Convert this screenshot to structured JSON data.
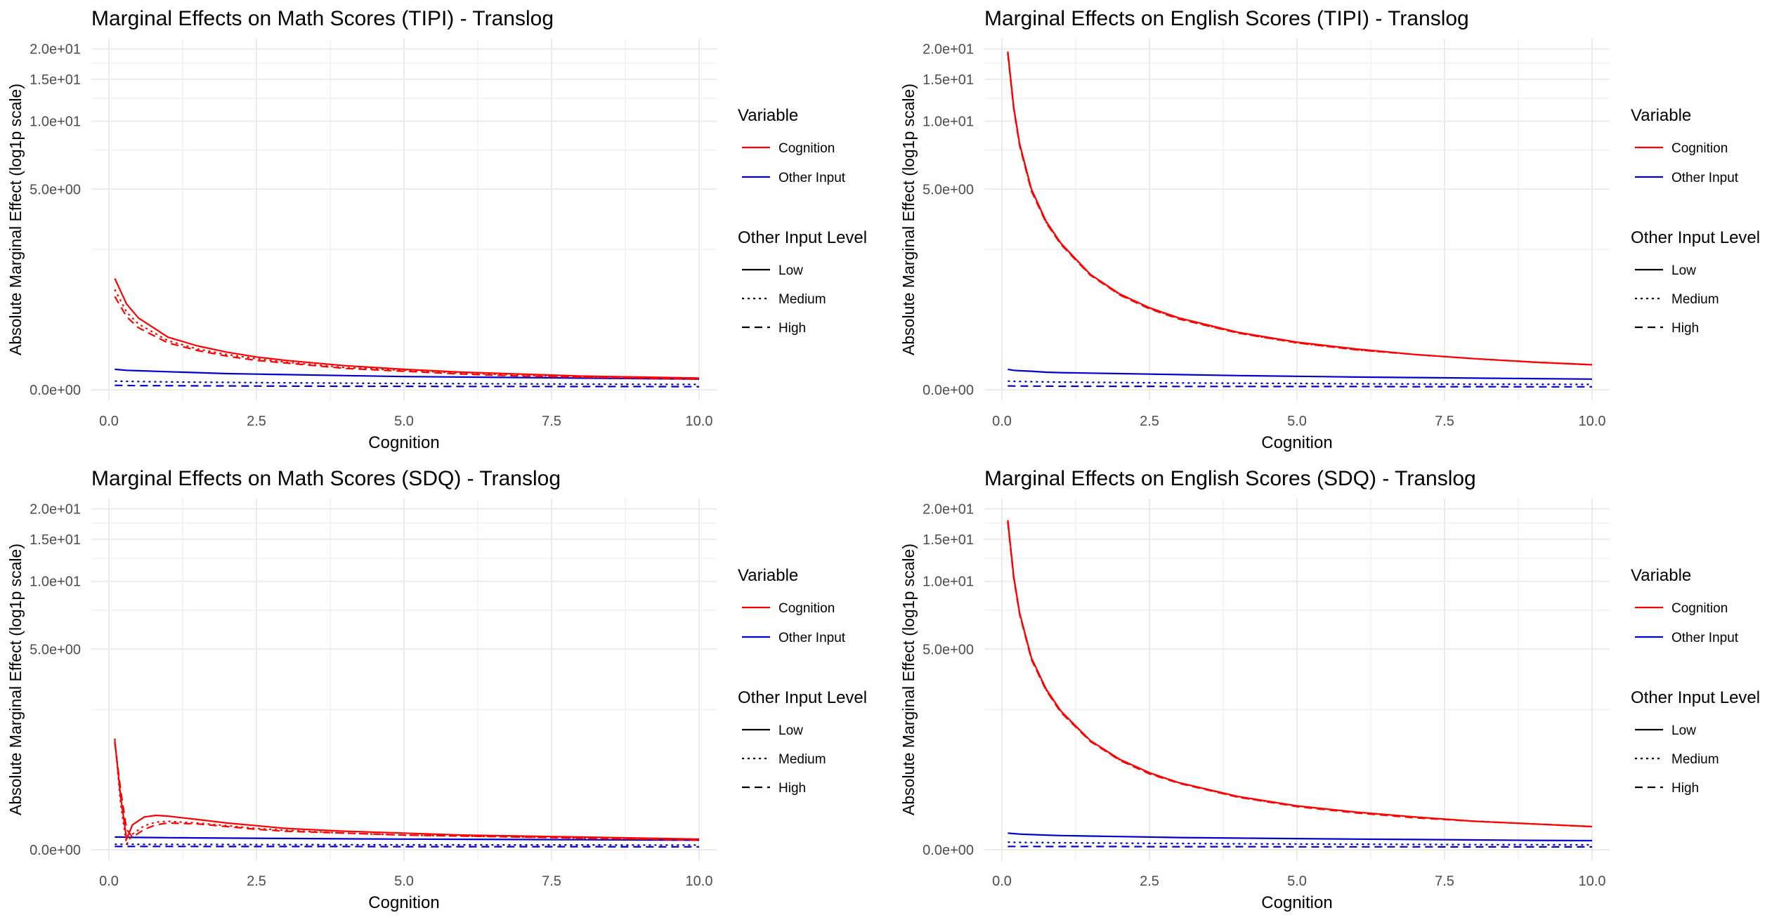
{
  "chart_data": [
    {
      "type": "line",
      "title": "Marginal Effects on Math Scores (TIPI) - Translog",
      "xlabel": "Cognition",
      "ylabel": "Absolute Marginal Effect (log1p scale)",
      "y_scale": "log1p",
      "xlim": [
        0,
        10
      ],
      "ylim": [
        0,
        20
      ],
      "x_ticks": [
        "0.0",
        "2.5",
        "5.0",
        "7.5",
        "10.0"
      ],
      "y_ticks": [
        "0.0e+00",
        "5.0e+00",
        "1.0e+01",
        "1.5e+01",
        "2.0e+01"
      ],
      "grid": true,
      "x": [
        0.1,
        0.3,
        0.5,
        1,
        1.5,
        2,
        2.5,
        3,
        4,
        5,
        6,
        7,
        8,
        9,
        10
      ],
      "series": [
        {
          "variable": "Cognition",
          "level": "Low",
          "values": [
            1.7,
            1.15,
            0.9,
            0.6,
            0.48,
            0.4,
            0.34,
            0.3,
            0.24,
            0.2,
            0.17,
            0.15,
            0.13,
            0.12,
            0.11
          ]
        },
        {
          "variable": "Cognition",
          "level": "Medium",
          "values": [
            1.45,
            1.0,
            0.8,
            0.55,
            0.44,
            0.37,
            0.32,
            0.28,
            0.22,
            0.19,
            0.16,
            0.14,
            0.12,
            0.11,
            0.1
          ]
        },
        {
          "variable": "Cognition",
          "level": "High",
          "values": [
            1.3,
            0.92,
            0.74,
            0.52,
            0.42,
            0.35,
            0.3,
            0.27,
            0.21,
            0.18,
            0.15,
            0.13,
            0.12,
            0.11,
            0.1
          ]
        },
        {
          "variable": "Other Input",
          "level": "Low",
          "values": [
            0.2,
            0.19,
            0.185,
            0.175,
            0.165,
            0.155,
            0.15,
            0.145,
            0.135,
            0.125,
            0.12,
            0.115,
            0.11,
            0.105,
            0.1
          ]
        },
        {
          "variable": "Other Input",
          "level": "Medium",
          "values": [
            0.08,
            0.078,
            0.076,
            0.073,
            0.07,
            0.068,
            0.066,
            0.064,
            0.061,
            0.058,
            0.056,
            0.054,
            0.052,
            0.05,
            0.049
          ]
        },
        {
          "variable": "Other Input",
          "level": "High",
          "values": [
            0.04,
            0.039,
            0.038,
            0.037,
            0.036,
            0.035,
            0.034,
            0.033,
            0.032,
            0.031,
            0.03,
            0.03,
            0.029,
            0.029,
            0.028
          ]
        }
      ]
    },
    {
      "type": "line",
      "title": "Marginal Effects on English Scores (TIPI) - Translog",
      "xlabel": "Cognition",
      "ylabel": "Absolute Marginal Effect (log1p scale)",
      "y_scale": "log1p",
      "xlim": [
        0,
        10
      ],
      "ylim": [
        0,
        20
      ],
      "x_ticks": [
        "0.0",
        "2.5",
        "5.0",
        "7.5",
        "10.0"
      ],
      "y_ticks": [
        "0.0e+00",
        "5.0e+00",
        "1.0e+01",
        "1.5e+01",
        "2.0e+01"
      ],
      "grid": true,
      "x": [
        0.1,
        0.2,
        0.3,
        0.5,
        0.75,
        1,
        1.5,
        2,
        2.5,
        3,
        4,
        5,
        6,
        7,
        8,
        9,
        10
      ],
      "series": [
        {
          "variable": "Cognition",
          "level": "Low",
          "values": [
            19.5,
            11.5,
            8.0,
            5.0,
            3.5,
            2.7,
            1.8,
            1.35,
            1.08,
            0.9,
            0.67,
            0.53,
            0.44,
            0.37,
            0.32,
            0.28,
            0.25
          ]
        },
        {
          "variable": "Cognition",
          "level": "Medium",
          "values": [
            19.3,
            11.4,
            7.9,
            4.95,
            3.47,
            2.68,
            1.79,
            1.34,
            1.07,
            0.89,
            0.66,
            0.52,
            0.43,
            0.37,
            0.32,
            0.28,
            0.25
          ]
        },
        {
          "variable": "Cognition",
          "level": "High",
          "values": [
            19.1,
            11.3,
            7.85,
            4.9,
            3.44,
            2.66,
            1.78,
            1.33,
            1.06,
            0.88,
            0.66,
            0.52,
            0.43,
            0.37,
            0.32,
            0.28,
            0.25
          ]
        },
        {
          "variable": "Other Input",
          "level": "Low",
          "values": [
            0.2,
            0.19,
            0.185,
            0.18,
            0.17,
            0.165,
            0.16,
            0.155,
            0.15,
            0.145,
            0.135,
            0.128,
            0.12,
            0.115,
            0.11,
            0.105,
            0.1
          ]
        },
        {
          "variable": "Other Input",
          "level": "Medium",
          "values": [
            0.08,
            0.078,
            0.077,
            0.075,
            0.073,
            0.071,
            0.069,
            0.067,
            0.065,
            0.063,
            0.06,
            0.058,
            0.055,
            0.053,
            0.051,
            0.05,
            0.049
          ]
        },
        {
          "variable": "Other Input",
          "level": "High",
          "values": [
            0.035,
            0.034,
            0.034,
            0.033,
            0.033,
            0.032,
            0.032,
            0.031,
            0.031,
            0.03,
            0.03,
            0.029,
            0.029,
            0.028,
            0.028,
            0.027,
            0.027
          ]
        }
      ]
    },
    {
      "type": "line",
      "title": "Marginal Effects on Math Scores (SDQ) - Translog",
      "xlabel": "Cognition",
      "ylabel": "Absolute Marginal Effect (log1p scale)",
      "y_scale": "log1p",
      "xlim": [
        0,
        10
      ],
      "ylim": [
        0,
        20
      ],
      "x_ticks": [
        "0.0",
        "2.5",
        "5.0",
        "7.5",
        "10.0"
      ],
      "y_ticks": [
        "0.0e+00",
        "5.0e+00",
        "1.0e+01",
        "1.5e+01",
        "2.0e+01"
      ],
      "grid": true,
      "x": [
        0.1,
        0.2,
        0.3,
        0.4,
        0.6,
        0.8,
        1,
        1.5,
        2,
        2.5,
        3,
        4,
        5,
        6,
        7,
        8,
        9,
        10
      ],
      "series": [
        {
          "variable": "Cognition",
          "level": "Low",
          "values": [
            1.65,
            0.6,
            0.1,
            0.25,
            0.34,
            0.36,
            0.35,
            0.31,
            0.27,
            0.24,
            0.21,
            0.18,
            0.16,
            0.14,
            0.13,
            0.12,
            0.11,
            0.1
          ]
        },
        {
          "variable": "Cognition",
          "level": "Medium",
          "values": [
            1.7,
            0.5,
            0.05,
            0.15,
            0.24,
            0.28,
            0.29,
            0.27,
            0.24,
            0.21,
            0.19,
            0.16,
            0.14,
            0.13,
            0.12,
            0.11,
            0.1,
            0.1
          ]
        },
        {
          "variable": "Cognition",
          "level": "High",
          "values": [
            1.6,
            0.7,
            0.2,
            0.12,
            0.2,
            0.25,
            0.27,
            0.26,
            0.23,
            0.2,
            0.18,
            0.16,
            0.14,
            0.13,
            0.12,
            0.11,
            0.1,
            0.09
          ]
        },
        {
          "variable": "Other Input",
          "level": "Low",
          "values": [
            0.12,
            0.12,
            0.118,
            0.117,
            0.116,
            0.115,
            0.114,
            0.112,
            0.11,
            0.108,
            0.106,
            0.103,
            0.1,
            0.098,
            0.096,
            0.094,
            0.092,
            0.09
          ]
        },
        {
          "variable": "Other Input",
          "level": "Medium",
          "values": [
            0.05,
            0.05,
            0.05,
            0.05,
            0.049,
            0.049,
            0.049,
            0.048,
            0.048,
            0.047,
            0.047,
            0.046,
            0.045,
            0.045,
            0.044,
            0.044,
            0.043,
            0.043
          ]
        },
        {
          "variable": "Other Input",
          "level": "High",
          "values": [
            0.03,
            0.03,
            0.03,
            0.03,
            0.03,
            0.03,
            0.03,
            0.03,
            0.029,
            0.029,
            0.029,
            0.029,
            0.028,
            0.028,
            0.028,
            0.028,
            0.027,
            0.027
          ]
        }
      ]
    },
    {
      "type": "line",
      "title": "Marginal Effects on English Scores (SDQ) - Translog",
      "xlabel": "Cognition",
      "ylabel": "Absolute Marginal Effect (log1p scale)",
      "y_scale": "log1p",
      "xlim": [
        0,
        10
      ],
      "ylim": [
        0,
        20
      ],
      "x_ticks": [
        "0.0",
        "2.5",
        "5.0",
        "7.5",
        "10.0"
      ],
      "y_ticks": [
        "0.0e+00",
        "5.0e+00",
        "1.0e+01",
        "1.5e+01",
        "2.0e+01"
      ],
      "grid": true,
      "x": [
        0.1,
        0.2,
        0.3,
        0.5,
        0.75,
        1,
        1.5,
        2,
        2.5,
        3,
        4,
        5,
        6,
        7,
        8,
        9,
        10
      ],
      "series": [
        {
          "variable": "Cognition",
          "level": "Low",
          "values": [
            18.0,
            10.5,
            7.3,
            4.55,
            3.2,
            2.45,
            1.65,
            1.24,
            0.99,
            0.82,
            0.61,
            0.48,
            0.4,
            0.34,
            0.29,
            0.26,
            0.23
          ]
        },
        {
          "variable": "Cognition",
          "level": "Medium",
          "values": [
            17.8,
            10.4,
            7.25,
            4.5,
            3.17,
            2.43,
            1.64,
            1.23,
            0.98,
            0.82,
            0.6,
            0.48,
            0.4,
            0.34,
            0.29,
            0.26,
            0.23
          ]
        },
        {
          "variable": "Cognition",
          "level": "High",
          "values": [
            17.6,
            10.3,
            7.2,
            4.47,
            3.15,
            2.41,
            1.63,
            1.22,
            0.97,
            0.81,
            0.6,
            0.47,
            0.39,
            0.33,
            0.29,
            0.26,
            0.23
          ]
        },
        {
          "variable": "Other Input",
          "level": "Low",
          "values": [
            0.16,
            0.155,
            0.15,
            0.145,
            0.14,
            0.135,
            0.13,
            0.125,
            0.12,
            0.115,
            0.11,
            0.105,
            0.1,
            0.096,
            0.092,
            0.088,
            0.085
          ]
        },
        {
          "variable": "Other Input",
          "level": "Medium",
          "values": [
            0.07,
            0.069,
            0.068,
            0.067,
            0.066,
            0.065,
            0.063,
            0.061,
            0.059,
            0.058,
            0.055,
            0.053,
            0.051,
            0.049,
            0.047,
            0.046,
            0.045
          ]
        },
        {
          "variable": "Other Input",
          "level": "High",
          "values": [
            0.03,
            0.03,
            0.03,
            0.03,
            0.029,
            0.029,
            0.029,
            0.029,
            0.028,
            0.028,
            0.028,
            0.027,
            0.027,
            0.027,
            0.026,
            0.026,
            0.026
          ]
        }
      ]
    }
  ],
  "legend": {
    "variable_title": "Variable",
    "variables": [
      "Cognition",
      "Other Input"
    ],
    "level_title": "Other Input Level",
    "levels": [
      "Low",
      "Medium",
      "High"
    ]
  },
  "colors": {
    "Cognition": "#ff0000",
    "Other Input": "#0000cc",
    "grid": "#ebebeb",
    "text": "#000000",
    "tick_text": "#4d4d4d",
    "legend_key": "#000000"
  },
  "line_styles": {
    "Low": "solid",
    "Medium": "dotted",
    "High": "dashed"
  }
}
